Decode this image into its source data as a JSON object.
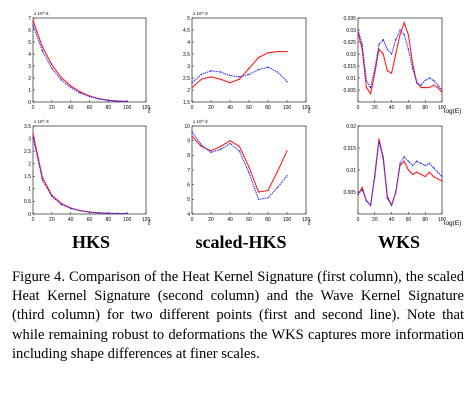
{
  "column_labels": [
    "HKS",
    "scaled-HKS",
    "WKS"
  ],
  "caption": "Figure 4. Comparison of the Heat Kernel Signature (first column), the scaled Heat Kernel Signature (second column) and the Wave Kernel Signature (third column) for two different points (first and second line).  Note that while remaining robust to deformations the WKS captures more information including shape differences at finer scales.",
  "colors": {
    "series_a": "#ff2020",
    "series_b": "#2a2aff"
  },
  "chart_data": [
    {
      "type": "line",
      "panel": "HKS row 1",
      "xlabel": "t",
      "xlim": [
        0,
        120
      ],
      "ylim": [
        0,
        7
      ],
      "y_exponent": "x 10^-4",
      "xticks": [
        0,
        20,
        40,
        60,
        80,
        100,
        120
      ],
      "yticks": [
        0,
        1,
        2,
        3,
        4,
        5,
        6,
        7
      ],
      "x": [
        0,
        10,
        20,
        30,
        40,
        50,
        60,
        70,
        80,
        90,
        100
      ],
      "series": [
        {
          "values": [
            6.8,
            4.6,
            3.1,
            2.05,
            1.35,
            0.85,
            0.5,
            0.28,
            0.15,
            0.08,
            0.05
          ]
        },
        {
          "values": [
            6.4,
            4.25,
            2.8,
            1.85,
            1.2,
            0.75,
            0.45,
            0.25,
            0.13,
            0.07,
            0.05
          ]
        }
      ]
    },
    {
      "type": "line",
      "panel": "scaled-HKS row 1",
      "xlabel": "t",
      "xlim": [
        0,
        120
      ],
      "ylim": [
        1.5,
        5
      ],
      "y_exponent": "x 10^-3",
      "xticks": [
        0,
        20,
        40,
        60,
        80,
        100,
        120
      ],
      "yticks": [
        1.5,
        2,
        2.5,
        3,
        3.5,
        4,
        4.5,
        5
      ],
      "x": [
        0,
        10,
        20,
        30,
        40,
        50,
        60,
        70,
        80,
        90,
        100
      ],
      "series": [
        {
          "values": [
            2.1,
            2.45,
            2.55,
            2.45,
            2.3,
            2.45,
            2.9,
            3.35,
            3.55,
            3.6,
            3.6
          ]
        },
        {
          "values": [
            2.3,
            2.65,
            2.8,
            2.75,
            2.6,
            2.55,
            2.65,
            2.85,
            2.95,
            2.75,
            2.35
          ]
        }
      ]
    },
    {
      "type": "line",
      "panel": "WKS row 1",
      "xlabel": "log(E)",
      "xlim": [
        0,
        100
      ],
      "ylim": [
        0,
        0.035
      ],
      "xticks": [
        0,
        20,
        40,
        60,
        80,
        100
      ],
      "yticks": [
        0.005,
        0.01,
        0.015,
        0.02,
        0.025,
        0.03,
        0.035
      ],
      "x": [
        0,
        5,
        10,
        15,
        20,
        25,
        30,
        35,
        40,
        45,
        50,
        55,
        60,
        65,
        70,
        75,
        80,
        85,
        90,
        95,
        100
      ],
      "series": [
        {
          "values": [
            0.029,
            0.022,
            0.006,
            0.0035,
            0.012,
            0.022,
            0.02,
            0.013,
            0.012,
            0.02,
            0.028,
            0.033,
            0.028,
            0.016,
            0.008,
            0.006,
            0.006,
            0.006,
            0.007,
            0.006,
            0.004
          ]
        },
        {
          "values": [
            0.03,
            0.024,
            0.009,
            0.006,
            0.014,
            0.024,
            0.026,
            0.022,
            0.02,
            0.026,
            0.03,
            0.028,
            0.022,
            0.014,
            0.008,
            0.007,
            0.009,
            0.01,
            0.009,
            0.007,
            0.005
          ]
        }
      ]
    },
    {
      "type": "line",
      "panel": "HKS row 2",
      "xlabel": "t",
      "xlim": [
        0,
        120
      ],
      "ylim": [
        0,
        3.5
      ],
      "y_exponent": "x 10^-3",
      "xticks": [
        0,
        20,
        40,
        60,
        80,
        100,
        120
      ],
      "yticks": [
        0,
        0.5,
        1,
        1.5,
        2,
        2.5,
        3,
        3.5
      ],
      "x": [
        0,
        10,
        20,
        30,
        40,
        50,
        60,
        70,
        80,
        90,
        100
      ],
      "series": [
        {
          "values": [
            3.2,
            1.45,
            0.75,
            0.42,
            0.24,
            0.14,
            0.08,
            0.05,
            0.03,
            0.02,
            0.02
          ]
        },
        {
          "values": [
            3.05,
            1.35,
            0.7,
            0.38,
            0.22,
            0.13,
            0.07,
            0.04,
            0.03,
            0.02,
            0.02
          ]
        }
      ]
    },
    {
      "type": "line",
      "panel": "scaled-HKS row 2",
      "xlabel": "t",
      "xlim": [
        0,
        120
      ],
      "ylim": [
        4,
        10
      ],
      "y_exponent": "x 10^-3",
      "xticks": [
        0,
        20,
        40,
        60,
        80,
        100,
        120
      ],
      "yticks": [
        4,
        5,
        6,
        7,
        8,
        9,
        10
      ],
      "x": [
        0,
        10,
        20,
        30,
        40,
        50,
        60,
        70,
        80,
        90,
        100
      ],
      "series": [
        {
          "values": [
            9.3,
            8.6,
            8.3,
            8.6,
            9.0,
            8.6,
            7.2,
            5.5,
            5.6,
            6.9,
            8.3
          ]
        },
        {
          "values": [
            9.6,
            8.7,
            8.2,
            8.4,
            8.8,
            8.3,
            6.8,
            5.0,
            5.1,
            5.8,
            6.6
          ]
        }
      ]
    },
    {
      "type": "line",
      "panel": "WKS row 2",
      "xlabel": "log(E)",
      "xlim": [
        0,
        100
      ],
      "ylim": [
        0,
        0.02
      ],
      "xticks": [
        0,
        20,
        40,
        60,
        80,
        100
      ],
      "yticks": [
        0.005,
        0.01,
        0.015,
        0.02
      ],
      "x": [
        0,
        5,
        10,
        15,
        20,
        25,
        30,
        35,
        40,
        45,
        50,
        55,
        60,
        65,
        70,
        75,
        80,
        85,
        90,
        95,
        100
      ],
      "series": [
        {
          "values": [
            0.0045,
            0.006,
            0.003,
            0.002,
            0.009,
            0.017,
            0.013,
            0.004,
            0.002,
            0.005,
            0.011,
            0.012,
            0.01,
            0.009,
            0.0095,
            0.009,
            0.0085,
            0.0095,
            0.0085,
            0.008,
            0.0075
          ]
        },
        {
          "values": [
            0.0045,
            0.0055,
            0.003,
            0.002,
            0.0085,
            0.0165,
            0.0125,
            0.0035,
            0.002,
            0.005,
            0.0115,
            0.013,
            0.012,
            0.011,
            0.012,
            0.0115,
            0.011,
            0.0115,
            0.0105,
            0.0095,
            0.0085
          ]
        }
      ]
    }
  ]
}
